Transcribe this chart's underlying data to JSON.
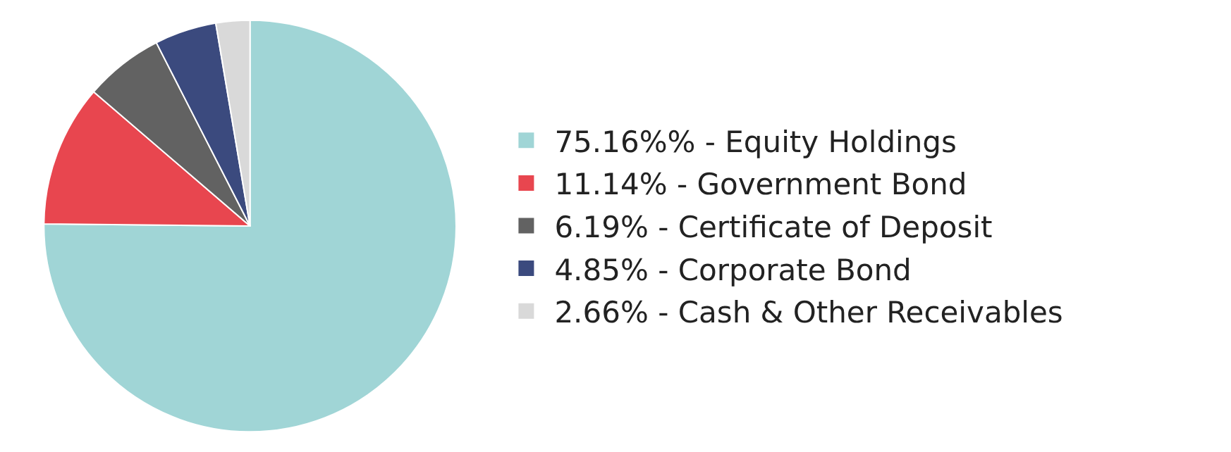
{
  "chart_data": {
    "type": "pie",
    "categories": [
      "75.16%% - Equity Holdings",
      "11.14% - Government Bond",
      "6.19% - Certificate of Deposit",
      "4.85% - Corporate Bond",
      "2.66% - Cash & Other Receivables"
    ],
    "values": [
      75.16,
      11.14,
      6.19,
      4.85,
      2.66
    ],
    "colors": [
      "#a0d5d6",
      "#e8464f",
      "#626262",
      "#3b4a7e",
      "#d9d9d9"
    ],
    "legend": "right"
  }
}
